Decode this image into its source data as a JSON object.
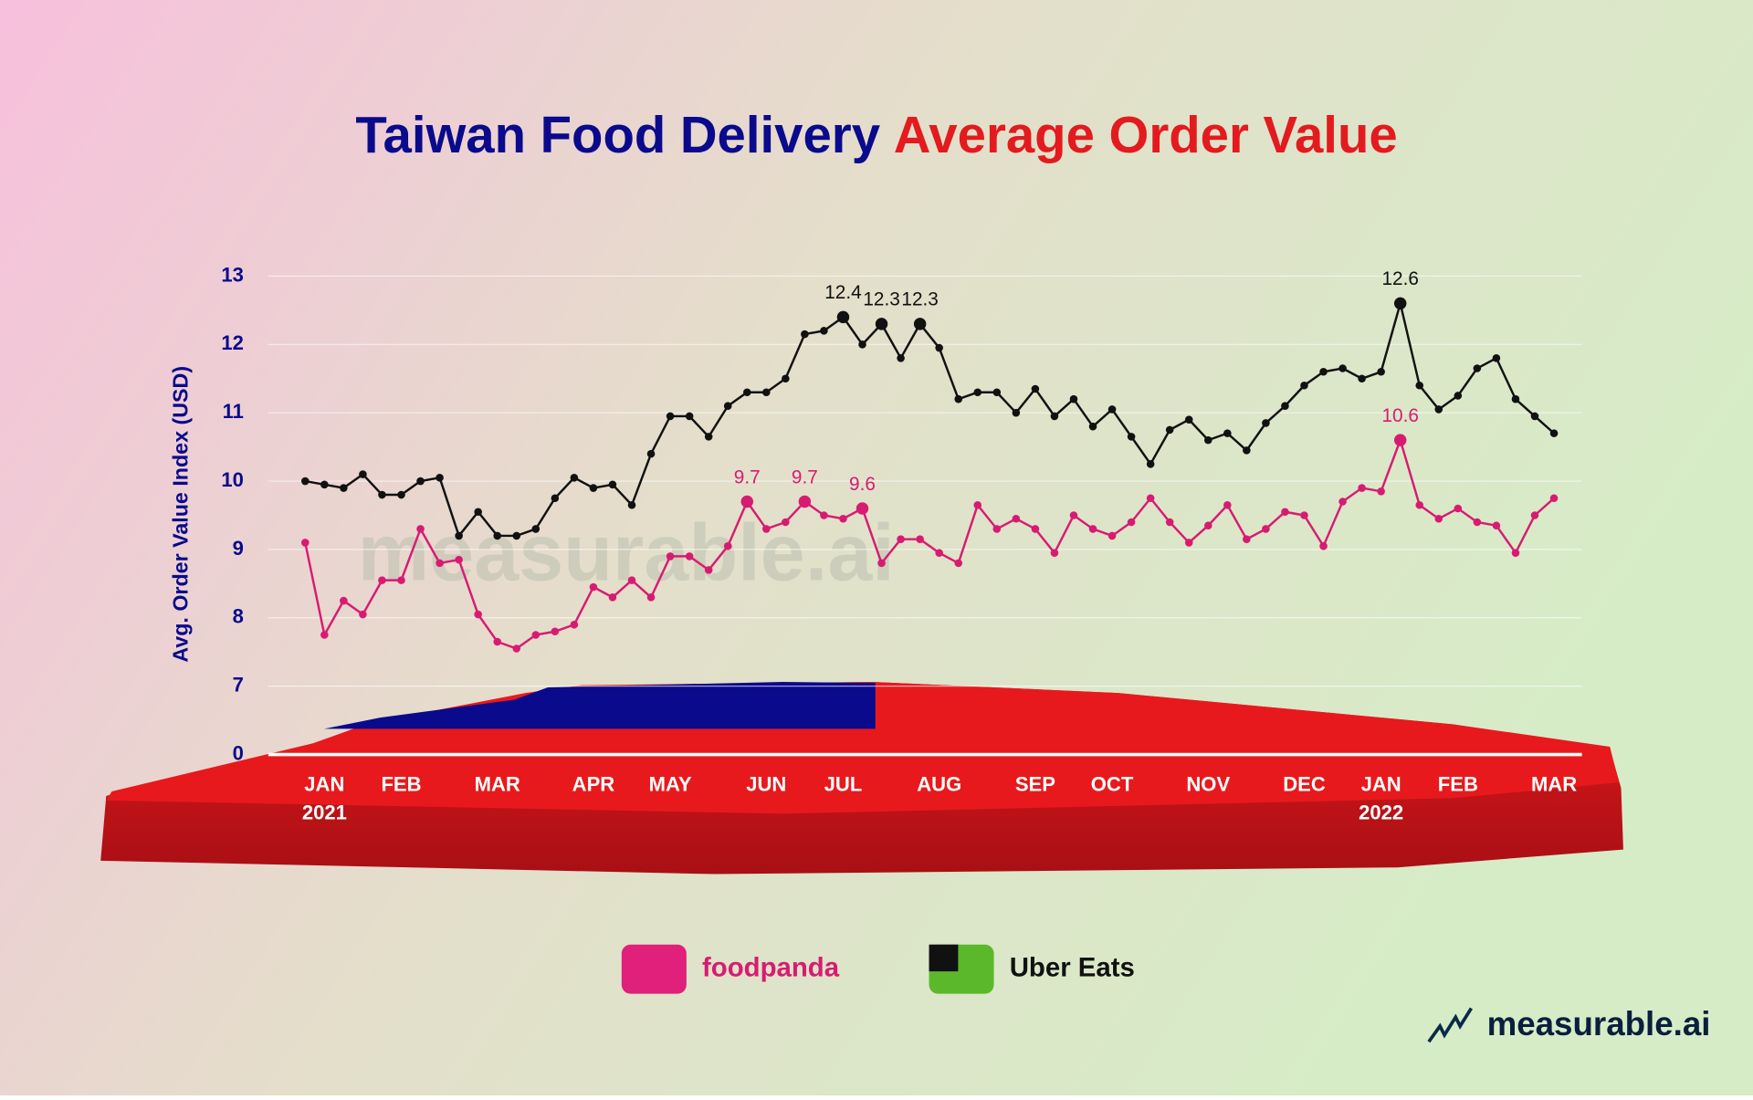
{
  "chart_data": {
    "type": "line",
    "title": "Taiwan Food Delivery",
    "title_highlight": "Average Order Value",
    "ylabel": "Avg. Order Value Index (USD)",
    "categories": [
      null,
      "JAN",
      null,
      null,
      null,
      "FEB",
      null,
      null,
      null,
      null,
      "MAR",
      null,
      null,
      null,
      null,
      "APR",
      null,
      null,
      null,
      "MAY",
      null,
      null,
      null,
      null,
      "JUN",
      null,
      null,
      null,
      "JUL",
      null,
      null,
      null,
      null,
      "AUG",
      null,
      null,
      null,
      null,
      "SEP",
      null,
      null,
      null,
      "OCT",
      null,
      null,
      null,
      null,
      "NOV",
      null,
      null,
      null,
      null,
      "DEC",
      null,
      null,
      null,
      "JAN",
      null,
      null,
      null,
      "FEB",
      null,
      null,
      null,
      null,
      "MAR"
    ],
    "x_sublabels": [
      null,
      "2021",
      null,
      null,
      null,
      null,
      null,
      null,
      null,
      null,
      null,
      null,
      null,
      null,
      null,
      null,
      null,
      null,
      null,
      null,
      null,
      null,
      null,
      null,
      null,
      null,
      null,
      null,
      null,
      null,
      null,
      null,
      null,
      null,
      null,
      null,
      null,
      null,
      null,
      null,
      null,
      null,
      null,
      null,
      null,
      null,
      null,
      null,
      null,
      null,
      null,
      null,
      null,
      null,
      null,
      null,
      "2022",
      null,
      null,
      null,
      null,
      null,
      null,
      null,
      null,
      null
    ],
    "series": [
      {
        "name": "foodpanda",
        "color": "#d81b72",
        "values": [
          9.1,
          7.75,
          8.25,
          8.05,
          8.55,
          8.55,
          9.3,
          8.8,
          8.85,
          8.05,
          7.65,
          7.55,
          7.75,
          7.8,
          7.9,
          8.45,
          8.3,
          8.55,
          8.3,
          8.9,
          8.9,
          8.7,
          9.05,
          9.7,
          9.3,
          9.4,
          9.7,
          9.5,
          9.45,
          9.6,
          8.8,
          9.15,
          9.15,
          8.95,
          8.8,
          9.65,
          9.3,
          9.45,
          9.3,
          8.95,
          9.5,
          9.3,
          9.2,
          9.4,
          9.75,
          9.4,
          9.1,
          9.35,
          9.65,
          9.15,
          9.3,
          9.55,
          9.5,
          9.05,
          9.7,
          9.9,
          9.85,
          10.6,
          9.65,
          9.45,
          9.6,
          9.4,
          9.35,
          8.95,
          9.5,
          9.75
        ],
        "value_labels": [
          null,
          null,
          null,
          null,
          null,
          null,
          null,
          null,
          null,
          null,
          null,
          null,
          null,
          null,
          null,
          null,
          null,
          null,
          null,
          null,
          null,
          null,
          null,
          "9.7",
          null,
          null,
          "9.7",
          null,
          null,
          "9.6",
          null,
          null,
          null,
          null,
          null,
          null,
          null,
          null,
          null,
          null,
          null,
          null,
          null,
          null,
          null,
          null,
          null,
          null,
          null,
          null,
          null,
          null,
          null,
          null,
          null,
          null,
          null,
          "10.6",
          null,
          null,
          null,
          null,
          null,
          null,
          null,
          null
        ]
      },
      {
        "name": "Uber Eats",
        "color": "#111111",
        "values": [
          10.0,
          9.95,
          9.9,
          10.1,
          9.8,
          9.8,
          10.0,
          10.05,
          9.2,
          9.55,
          9.2,
          9.2,
          9.3,
          9.75,
          10.05,
          9.9,
          9.95,
          9.65,
          10.4,
          10.95,
          10.95,
          10.65,
          11.1,
          11.3,
          11.3,
          11.5,
          12.15,
          12.2,
          12.4,
          12.0,
          12.3,
          11.8,
          12.3,
          11.95,
          11.2,
          11.3,
          11.3,
          11.0,
          11.35,
          10.95,
          11.2,
          10.8,
          11.05,
          10.65,
          10.25,
          10.75,
          10.9,
          10.6,
          10.7,
          10.45,
          10.85,
          11.1,
          11.4,
          11.6,
          11.65,
          11.5,
          11.6,
          12.6,
          11.4,
          11.05,
          11.25,
          11.65,
          11.8,
          11.2,
          10.95,
          10.7
        ],
        "value_labels": [
          null,
          null,
          null,
          null,
          null,
          null,
          null,
          null,
          null,
          null,
          null,
          null,
          null,
          null,
          null,
          null,
          null,
          null,
          null,
          null,
          null,
          null,
          null,
          null,
          null,
          null,
          null,
          null,
          "12.4",
          null,
          "12.3",
          null,
          "12.3",
          null,
          null,
          null,
          null,
          null,
          null,
          null,
          null,
          null,
          null,
          null,
          null,
          null,
          null,
          null,
          null,
          null,
          null,
          null,
          null,
          null,
          null,
          null,
          null,
          "12.6",
          null,
          null,
          null,
          null,
          null,
          null,
          null,
          null
        ]
      }
    ],
    "ylim": [
      0,
      13
    ],
    "yticks": [
      0,
      7,
      8,
      9,
      10,
      11,
      12,
      13
    ],
    "ybreak": [
      0,
      7
    ],
    "grid": true,
    "watermark": "measurable.ai",
    "brand": "measurable.ai"
  }
}
